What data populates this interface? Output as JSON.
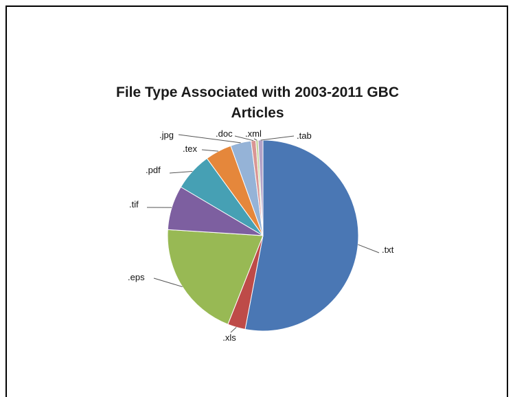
{
  "chart_data": {
    "type": "pie",
    "title_lines": [
      "File Type Associated with 2003-2011 GBC",
      "Articles"
    ],
    "slices": [
      {
        "label": ".txt",
        "value": 53.0,
        "color": "#4a77b4"
      },
      {
        "label": ".xls",
        "value": 3.0,
        "color": "#be4b48"
      },
      {
        "label": ".eps",
        "value": 20.0,
        "color": "#98b954"
      },
      {
        "label": ".tif",
        "value": 7.5,
        "color": "#7d5fa0"
      },
      {
        "label": ".pdf",
        "value": 6.5,
        "color": "#46a0b4"
      },
      {
        "label": ".tex",
        "value": 4.5,
        "color": "#e5873b"
      },
      {
        "label": ".jpg",
        "value": 3.5,
        "color": "#95b3d7"
      },
      {
        "label": ".doc",
        "value": 0.8,
        "color": "#d99694"
      },
      {
        "label": ".xml",
        "value": 0.4,
        "color": "#c3d69b"
      },
      {
        "label": ".tab",
        "value": 0.8,
        "color": "#b3a2c7"
      }
    ]
  }
}
